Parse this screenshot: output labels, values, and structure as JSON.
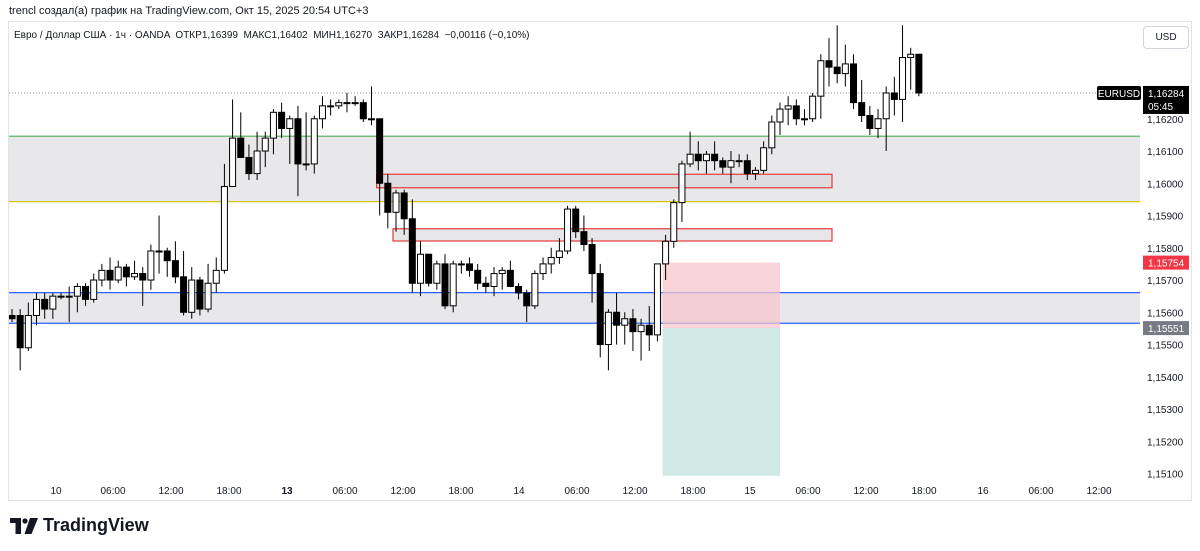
{
  "header": {
    "author_line": "trencl создал(а) график на TradingView.com, Окт 15, 2025 20:54 UTC+3"
  },
  "legend": {
    "symbol_desc": "Евро / Доллар США · 1ч · OANDA",
    "open_label": "ОТКР",
    "open_value": "1,16399",
    "high_label": "МАКС",
    "high_value": "1,16402",
    "low_label": "МИН",
    "low_value": "1,16270",
    "close_label": "ЗАКР",
    "close_value": "1,16284",
    "change": "−0,00116 (−0,10%)"
  },
  "currency_button": "USD",
  "brand": {
    "name": "TradingView"
  },
  "colors": {
    "up_body": "#ffffff",
    "down_body": "#000000",
    "candle_outline": "#000000",
    "green_level": "#4caf50",
    "yellow_level": "#d4c400",
    "blue_level": "#2962ff",
    "zone_fill": "#e8e8ea",
    "ob_border": "#e53935",
    "stop_zone": "#f7c6cc",
    "target_zone": "#cfeae4",
    "price_badge": "#000000",
    "sl_badge": "#f23645",
    "entry_badge": "#787b86"
  },
  "chart_data": {
    "type": "candlestick",
    "symbol": "EURUSD",
    "timeframe": "1ч",
    "ylim": [
      1.1508,
      1.165
    ],
    "y_ticks": [
      "1,16200",
      "1,16100",
      "1,16000",
      "1,15900",
      "1,15800",
      "1,15700",
      "1,15600",
      "1,15500",
      "1,15400",
      "1,15300",
      "1,15200",
      "1,15100"
    ],
    "x_ticks": [
      "10",
      "06:00",
      "12:00",
      "18:00",
      "13",
      "06:00",
      "12:00",
      "18:00",
      "14",
      "06:00",
      "12:00",
      "18:00",
      "15",
      "06:00",
      "12:00",
      "18:00",
      "16",
      "06:00",
      "12:00"
    ],
    "candles": [
      {
        "o": 1.1559,
        "h": 1.1561,
        "l": 1.1557,
        "c": 1.1558
      },
      {
        "o": 1.1559,
        "h": 1.1561,
        "l": 1.1542,
        "c": 1.1549
      },
      {
        "o": 1.1549,
        "h": 1.1563,
        "l": 1.1548,
        "c": 1.1559
      },
      {
        "o": 1.1559,
        "h": 1.1566,
        "l": 1.1556,
        "c": 1.1564
      },
      {
        "o": 1.1564,
        "h": 1.1566,
        "l": 1.1558,
        "c": 1.1561
      },
      {
        "o": 1.1561,
        "h": 1.1566,
        "l": 1.1558,
        "c": 1.1565
      },
      {
        "o": 1.1565,
        "h": 1.1566,
        "l": 1.1564,
        "c": 1.1565
      },
      {
        "o": 1.1565,
        "h": 1.1568,
        "l": 1.1557,
        "c": 1.1565
      },
      {
        "o": 1.1565,
        "h": 1.1569,
        "l": 1.156,
        "c": 1.1568
      },
      {
        "o": 1.1568,
        "h": 1.1569,
        "l": 1.1562,
        "c": 1.1564
      },
      {
        "o": 1.1564,
        "h": 1.1572,
        "l": 1.1563,
        "c": 1.157
      },
      {
        "o": 1.157,
        "h": 1.1575,
        "l": 1.1568,
        "c": 1.1573
      },
      {
        "o": 1.1573,
        "h": 1.1577,
        "l": 1.1567,
        "c": 1.157
      },
      {
        "o": 1.157,
        "h": 1.1576,
        "l": 1.1569,
        "c": 1.1574
      },
      {
        "o": 1.1574,
        "h": 1.1575,
        "l": 1.1568,
        "c": 1.1571
      },
      {
        "o": 1.1571,
        "h": 1.1576,
        "l": 1.157,
        "c": 1.1572
      },
      {
        "o": 1.1572,
        "h": 1.1574,
        "l": 1.1562,
        "c": 1.157
      },
      {
        "o": 1.157,
        "h": 1.1581,
        "l": 1.1567,
        "c": 1.1579
      },
      {
        "o": 1.1579,
        "h": 1.159,
        "l": 1.1572,
        "c": 1.1579
      },
      {
        "o": 1.1579,
        "h": 1.158,
        "l": 1.1571,
        "c": 1.1576
      },
      {
        "o": 1.1576,
        "h": 1.1582,
        "l": 1.1569,
        "c": 1.1571
      },
      {
        "o": 1.1571,
        "h": 1.1579,
        "l": 1.1559,
        "c": 1.156
      },
      {
        "o": 1.156,
        "h": 1.1574,
        "l": 1.1558,
        "c": 1.157
      },
      {
        "o": 1.157,
        "h": 1.1571,
        "l": 1.1559,
        "c": 1.1561
      },
      {
        "o": 1.1561,
        "h": 1.1575,
        "l": 1.156,
        "c": 1.1569
      },
      {
        "o": 1.1569,
        "h": 1.1577,
        "l": 1.1566,
        "c": 1.1573
      },
      {
        "o": 1.1573,
        "h": 1.1606,
        "l": 1.1572,
        "c": 1.1599
      },
      {
        "o": 1.1599,
        "h": 1.1626,
        "l": 1.1599,
        "c": 1.1614
      },
      {
        "o": 1.1614,
        "h": 1.1622,
        "l": 1.1609,
        "c": 1.1608
      },
      {
        "o": 1.1608,
        "h": 1.1612,
        "l": 1.1601,
        "c": 1.1603
      },
      {
        "o": 1.1603,
        "h": 1.1616,
        "l": 1.1601,
        "c": 1.161
      },
      {
        "o": 1.161,
        "h": 1.1616,
        "l": 1.1605,
        "c": 1.1614
      },
      {
        "o": 1.1614,
        "h": 1.1623,
        "l": 1.1609,
        "c": 1.1622
      },
      {
        "o": 1.1622,
        "h": 1.1625,
        "l": 1.1614,
        "c": 1.1617
      },
      {
        "o": 1.1617,
        "h": 1.1621,
        "l": 1.1606,
        "c": 1.162
      },
      {
        "o": 1.162,
        "h": 1.1624,
        "l": 1.1596,
        "c": 1.1606
      },
      {
        "o": 1.1606,
        "h": 1.1622,
        "l": 1.1604,
        "c": 1.1606
      },
      {
        "o": 1.1606,
        "h": 1.1621,
        "l": 1.1603,
        "c": 1.162
      },
      {
        "o": 1.162,
        "h": 1.1627,
        "l": 1.1617,
        "c": 1.1624
      },
      {
        "o": 1.1624,
        "h": 1.1626,
        "l": 1.1621,
        "c": 1.1624
      },
      {
        "o": 1.1624,
        "h": 1.1626,
        "l": 1.1623,
        "c": 1.1625
      },
      {
        "o": 1.1625,
        "h": 1.1628,
        "l": 1.1622,
        "c": 1.1625
      },
      {
        "o": 1.1625,
        "h": 1.1627,
        "l": 1.1624,
        "c": 1.1625
      },
      {
        "o": 1.1625,
        "h": 1.1626,
        "l": 1.1619,
        "c": 1.162
      },
      {
        "o": 1.162,
        "h": 1.163,
        "l": 1.1618,
        "c": 1.162
      },
      {
        "o": 1.162,
        "h": 1.1619,
        "l": 1.159,
        "c": 1.16
      },
      {
        "o": 1.16,
        "h": 1.1603,
        "l": 1.1586,
        "c": 1.1591
      },
      {
        "o": 1.1591,
        "h": 1.1598,
        "l": 1.1585,
        "c": 1.1597
      },
      {
        "o": 1.1597,
        "h": 1.1598,
        "l": 1.1584,
        "c": 1.1589
      },
      {
        "o": 1.1589,
        "h": 1.1595,
        "l": 1.1566,
        "c": 1.1569
      },
      {
        "o": 1.1569,
        "h": 1.1582,
        "l": 1.1565,
        "c": 1.1578
      },
      {
        "o": 1.1578,
        "h": 1.1578,
        "l": 1.1568,
        "c": 1.1569
      },
      {
        "o": 1.1569,
        "h": 1.1576,
        "l": 1.1567,
        "c": 1.1575
      },
      {
        "o": 1.1575,
        "h": 1.1578,
        "l": 1.1561,
        "c": 1.1562
      },
      {
        "o": 1.1562,
        "h": 1.1576,
        "l": 1.156,
        "c": 1.1575
      },
      {
        "o": 1.1575,
        "h": 1.1576,
        "l": 1.1572,
        "c": 1.1575
      },
      {
        "o": 1.1575,
        "h": 1.1577,
        "l": 1.1571,
        "c": 1.1573
      },
      {
        "o": 1.1573,
        "h": 1.1575,
        "l": 1.1567,
        "c": 1.1569
      },
      {
        "o": 1.1569,
        "h": 1.1571,
        "l": 1.1566,
        "c": 1.1568
      },
      {
        "o": 1.1568,
        "h": 1.1574,
        "l": 1.1565,
        "c": 1.1572
      },
      {
        "o": 1.1572,
        "h": 1.1574,
        "l": 1.1567,
        "c": 1.1573
      },
      {
        "o": 1.1573,
        "h": 1.1576,
        "l": 1.1568,
        "c": 1.1568
      },
      {
        "o": 1.1568,
        "h": 1.1569,
        "l": 1.1564,
        "c": 1.1566
      },
      {
        "o": 1.1566,
        "h": 1.1567,
        "l": 1.1557,
        "c": 1.1562
      },
      {
        "o": 1.1562,
        "h": 1.1573,
        "l": 1.1561,
        "c": 1.1572
      },
      {
        "o": 1.1572,
        "h": 1.1577,
        "l": 1.157,
        "c": 1.1575
      },
      {
        "o": 1.1575,
        "h": 1.158,
        "l": 1.1572,
        "c": 1.1577
      },
      {
        "o": 1.1577,
        "h": 1.1583,
        "l": 1.1575,
        "c": 1.1579
      },
      {
        "o": 1.1579,
        "h": 1.1593,
        "l": 1.1578,
        "c": 1.1592
      },
      {
        "o": 1.1592,
        "h": 1.1593,
        "l": 1.1583,
        "c": 1.1585
      },
      {
        "o": 1.1585,
        "h": 1.159,
        "l": 1.1579,
        "c": 1.1581
      },
      {
        "o": 1.1581,
        "h": 1.1583,
        "l": 1.1563,
        "c": 1.1572
      },
      {
        "o": 1.1572,
        "h": 1.1575,
        "l": 1.1546,
        "c": 1.155
      },
      {
        "o": 1.155,
        "h": 1.1561,
        "l": 1.1542,
        "c": 1.156
      },
      {
        "o": 1.156,
        "h": 1.1566,
        "l": 1.155,
        "c": 1.1556
      },
      {
        "o": 1.1556,
        "h": 1.156,
        "l": 1.155,
        "c": 1.1558
      },
      {
        "o": 1.1558,
        "h": 1.1561,
        "l": 1.1548,
        "c": 1.1554
      },
      {
        "o": 1.1554,
        "h": 1.1558,
        "l": 1.1545,
        "c": 1.1556
      },
      {
        "o": 1.1556,
        "h": 1.1562,
        "l": 1.1548,
        "c": 1.1553
      },
      {
        "o": 1.1553,
        "h": 1.1575,
        "l": 1.1551,
        "c": 1.1575
      },
      {
        "o": 1.1575,
        "h": 1.1584,
        "l": 1.157,
        "c": 1.1582
      },
      {
        "o": 1.1582,
        "h": 1.1595,
        "l": 1.158,
        "c": 1.1594
      },
      {
        "o": 1.1594,
        "h": 1.1607,
        "l": 1.1588,
        "c": 1.1606
      },
      {
        "o": 1.1606,
        "h": 1.1616,
        "l": 1.1605,
        "c": 1.1609
      },
      {
        "o": 1.1609,
        "h": 1.1613,
        "l": 1.1604,
        "c": 1.1607
      },
      {
        "o": 1.1607,
        "h": 1.161,
        "l": 1.1603,
        "c": 1.1609
      },
      {
        "o": 1.1609,
        "h": 1.1613,
        "l": 1.1604,
        "c": 1.1607
      },
      {
        "o": 1.1607,
        "h": 1.1608,
        "l": 1.1603,
        "c": 1.1605
      },
      {
        "o": 1.1605,
        "h": 1.161,
        "l": 1.16,
        "c": 1.1607
      },
      {
        "o": 1.1607,
        "h": 1.1609,
        "l": 1.1605,
        "c": 1.1607
      },
      {
        "o": 1.1607,
        "h": 1.1609,
        "l": 1.1601,
        "c": 1.1603
      },
      {
        "o": 1.1603,
        "h": 1.1605,
        "l": 1.1601,
        "c": 1.1604
      },
      {
        "o": 1.1604,
        "h": 1.1613,
        "l": 1.1603,
        "c": 1.1611
      },
      {
        "o": 1.1611,
        "h": 1.1621,
        "l": 1.1609,
        "c": 1.1619
      },
      {
        "o": 1.1619,
        "h": 1.1625,
        "l": 1.1615,
        "c": 1.1623
      },
      {
        "o": 1.1623,
        "h": 1.1627,
        "l": 1.1618,
        "c": 1.1624
      },
      {
        "o": 1.1624,
        "h": 1.1626,
        "l": 1.1618,
        "c": 1.162
      },
      {
        "o": 1.162,
        "h": 1.1623,
        "l": 1.1618,
        "c": 1.162
      },
      {
        "o": 1.162,
        "h": 1.1628,
        "l": 1.1619,
        "c": 1.1627
      },
      {
        "o": 1.1627,
        "h": 1.164,
        "l": 1.162,
        "c": 1.1638
      },
      {
        "o": 1.1638,
        "h": 1.1645,
        "l": 1.163,
        "c": 1.1636
      },
      {
        "o": 1.1636,
        "h": 1.1649,
        "l": 1.1631,
        "c": 1.1634
      },
      {
        "o": 1.1634,
        "h": 1.1643,
        "l": 1.163,
        "c": 1.1637
      },
      {
        "o": 1.1637,
        "h": 1.164,
        "l": 1.1623,
        "c": 1.1625
      },
      {
        "o": 1.1625,
        "h": 1.1632,
        "l": 1.1619,
        "c": 1.1621
      },
      {
        "o": 1.1621,
        "h": 1.1624,
        "l": 1.1615,
        "c": 1.1617
      },
      {
        "o": 1.1617,
        "h": 1.1623,
        "l": 1.1614,
        "c": 1.162
      },
      {
        "o": 1.162,
        "h": 1.163,
        "l": 1.161,
        "c": 1.1628
      },
      {
        "o": 1.1628,
        "h": 1.1633,
        "l": 1.1621,
        "c": 1.1626
      },
      {
        "o": 1.1626,
        "h": 1.1649,
        "l": 1.1619,
        "c": 1.1639
      },
      {
        "o": 1.1639,
        "h": 1.1642,
        "l": 1.1629,
        "c": 1.164
      },
      {
        "o": 1.164,
        "h": 1.164,
        "l": 1.1627,
        "c": 1.1628
      }
    ],
    "levels": [
      {
        "name": "green-level",
        "price": 1.16146,
        "color": "#4caf50"
      },
      {
        "name": "yellow-level",
        "price": 1.15943,
        "color": "#d4c400"
      },
      {
        "name": "blue-upper-level",
        "price": 1.15661,
        "color": "#2962ff"
      },
      {
        "name": "blue-lower-level",
        "price": 1.15566,
        "color": "#2962ff"
      }
    ],
    "zones": [
      {
        "name": "upper-range-zone",
        "top": 1.16146,
        "bottom": 1.15943
      },
      {
        "name": "lower-range-zone",
        "top": 1.15661,
        "bottom": 1.15566
      }
    ],
    "order_blocks": [
      {
        "name": "order-block-upper",
        "top": 1.16028,
        "bottom": 1.15986,
        "from_bar": 45,
        "to_bar": 100
      },
      {
        "name": "order-block-lower",
        "top": 1.15859,
        "bottom": 1.15821,
        "from_bar": 47,
        "to_bar": 100
      }
    ],
    "position": {
      "entry": 1.15551,
      "stop": 1.15754,
      "target": 1.15093,
      "from_bar": 80,
      "to_bar": 94
    },
    "price_labels": {
      "symbol_tag": "EURUSD",
      "current_price": "1,16284",
      "countdown": "05:45",
      "stop_price": "1,15754",
      "entry_price": "1,15551"
    }
  }
}
